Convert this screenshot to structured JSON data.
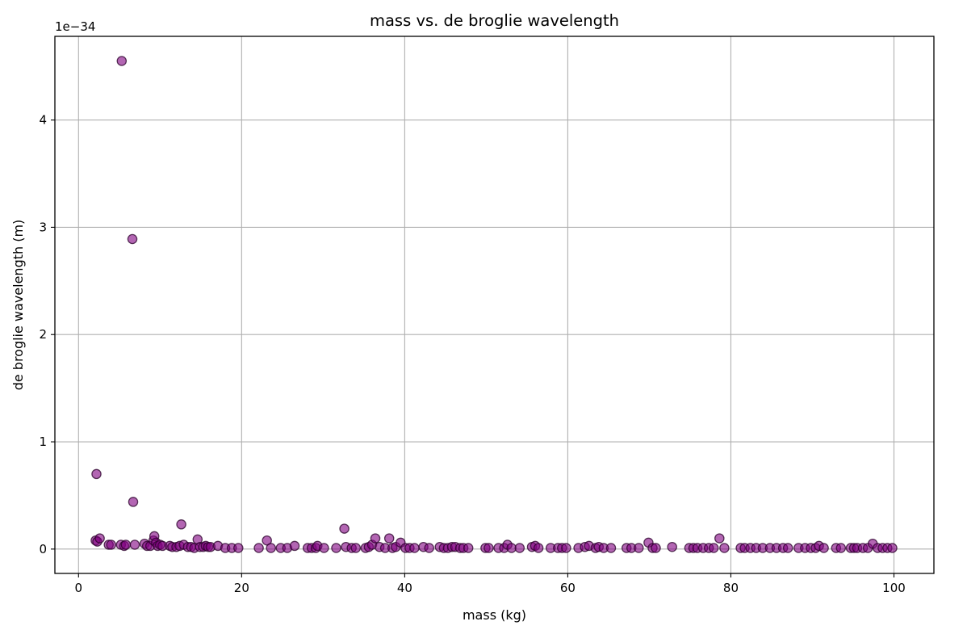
{
  "chart_data": {
    "type": "scatter",
    "title": "mass vs. de broglie wavelength",
    "xlabel": "mass (kg)",
    "ylabel": "de broglie wavelength (m)",
    "y_offset_label": "1e−34",
    "xlim": [
      -2.9,
      104.9
    ],
    "ylim": [
      -0.227,
      4.78
    ],
    "xticks": [
      0,
      20,
      40,
      60,
      80,
      100
    ],
    "xtick_labels": [
      "0",
      "20",
      "40",
      "60",
      "80",
      "100"
    ],
    "yticks": [
      0,
      1,
      2,
      3,
      4
    ],
    "ytick_labels": [
      "0",
      "1",
      "2",
      "3",
      "4"
    ],
    "y_units_note": "y values in units of 1e-34 m",
    "grid": true,
    "legend": "none",
    "marker_color": "#800080",
    "marker_edge_color": "#2a002a",
    "marker_alpha": 0.6,
    "points": [
      [
        5.3,
        4.55
      ],
      [
        6.6,
        2.89
      ],
      [
        2.2,
        0.7
      ],
      [
        6.7,
        0.44
      ],
      [
        12.6,
        0.23
      ],
      [
        32.6,
        0.19
      ],
      [
        2.1,
        0.08
      ],
      [
        2.3,
        0.07
      ],
      [
        2.6,
        0.1
      ],
      [
        3.7,
        0.04
      ],
      [
        4.0,
        0.04
      ],
      [
        5.2,
        0.04
      ],
      [
        5.6,
        0.03
      ],
      [
        5.8,
        0.04
      ],
      [
        6.9,
        0.04
      ],
      [
        8.1,
        0.05
      ],
      [
        8.4,
        0.03
      ],
      [
        8.8,
        0.03
      ],
      [
        9.2,
        0.08
      ],
      [
        9.3,
        0.12
      ],
      [
        9.5,
        0.06
      ],
      [
        9.7,
        0.03
      ],
      [
        10.0,
        0.04
      ],
      [
        10.3,
        0.03
      ],
      [
        11.2,
        0.03
      ],
      [
        11.5,
        0.02
      ],
      [
        12.0,
        0.02
      ],
      [
        12.4,
        0.03
      ],
      [
        12.9,
        0.04
      ],
      [
        13.4,
        0.02
      ],
      [
        13.8,
        0.02
      ],
      [
        14.2,
        0.01
      ],
      [
        14.6,
        0.09
      ],
      [
        14.9,
        0.02
      ],
      [
        15.3,
        0.02
      ],
      [
        15.6,
        0.03
      ],
      [
        15.9,
        0.02
      ],
      [
        16.2,
        0.02
      ],
      [
        17.1,
        0.03
      ],
      [
        18.0,
        0.01
      ],
      [
        18.8,
        0.01
      ],
      [
        19.6,
        0.01
      ],
      [
        22.1,
        0.01
      ],
      [
        23.1,
        0.08
      ],
      [
        23.6,
        0.01
      ],
      [
        24.8,
        0.01
      ],
      [
        25.6,
        0.01
      ],
      [
        26.5,
        0.03
      ],
      [
        28.1,
        0.01
      ],
      [
        28.6,
        0.01
      ],
      [
        29.1,
        0.01
      ],
      [
        29.3,
        0.03
      ],
      [
        30.1,
        0.01
      ],
      [
        31.6,
        0.01
      ],
      [
        32.8,
        0.02
      ],
      [
        33.5,
        0.01
      ],
      [
        34.0,
        0.01
      ],
      [
        35.2,
        0.01
      ],
      [
        35.6,
        0.02
      ],
      [
        36.0,
        0.04
      ],
      [
        36.4,
        0.1
      ],
      [
        36.9,
        0.02
      ],
      [
        37.6,
        0.01
      ],
      [
        38.1,
        0.1
      ],
      [
        38.5,
        0.01
      ],
      [
        38.9,
        0.02
      ],
      [
        39.5,
        0.06
      ],
      [
        40.1,
        0.01
      ],
      [
        40.6,
        0.01
      ],
      [
        41.2,
        0.01
      ],
      [
        42.3,
        0.02
      ],
      [
        43.0,
        0.01
      ],
      [
        44.3,
        0.02
      ],
      [
        44.8,
        0.01
      ],
      [
        45.3,
        0.01
      ],
      [
        45.8,
        0.02
      ],
      [
        46.2,
        0.02
      ],
      [
        46.8,
        0.01
      ],
      [
        47.2,
        0.01
      ],
      [
        47.8,
        0.01
      ],
      [
        49.9,
        0.01
      ],
      [
        50.3,
        0.01
      ],
      [
        51.5,
        0.01
      ],
      [
        52.2,
        0.01
      ],
      [
        52.6,
        0.04
      ],
      [
        53.1,
        0.01
      ],
      [
        54.1,
        0.01
      ],
      [
        55.6,
        0.02
      ],
      [
        56.0,
        0.03
      ],
      [
        56.4,
        0.01
      ],
      [
        57.9,
        0.01
      ],
      [
        58.8,
        0.01
      ],
      [
        59.3,
        0.01
      ],
      [
        59.8,
        0.01
      ],
      [
        61.3,
        0.01
      ],
      [
        62.1,
        0.02
      ],
      [
        62.6,
        0.03
      ],
      [
        63.4,
        0.01
      ],
      [
        63.8,
        0.02
      ],
      [
        64.4,
        0.01
      ],
      [
        65.3,
        0.01
      ],
      [
        67.2,
        0.01
      ],
      [
        67.8,
        0.01
      ],
      [
        68.7,
        0.01
      ],
      [
        69.9,
        0.06
      ],
      [
        70.4,
        0.01
      ],
      [
        70.8,
        0.01
      ],
      [
        72.8,
        0.02
      ],
      [
        74.9,
        0.01
      ],
      [
        75.4,
        0.01
      ],
      [
        75.9,
        0.01
      ],
      [
        76.6,
        0.01
      ],
      [
        77.3,
        0.01
      ],
      [
        77.9,
        0.01
      ],
      [
        78.6,
        0.1
      ],
      [
        79.2,
        0.01
      ],
      [
        81.2,
        0.01
      ],
      [
        81.7,
        0.01
      ],
      [
        82.4,
        0.01
      ],
      [
        83.1,
        0.01
      ],
      [
        83.9,
        0.01
      ],
      [
        84.8,
        0.01
      ],
      [
        85.6,
        0.01
      ],
      [
        86.4,
        0.01
      ],
      [
        87.0,
        0.01
      ],
      [
        88.3,
        0.01
      ],
      [
        89.1,
        0.01
      ],
      [
        89.8,
        0.01
      ],
      [
        90.4,
        0.01
      ],
      [
        90.8,
        0.03
      ],
      [
        91.4,
        0.01
      ],
      [
        92.9,
        0.01
      ],
      [
        93.5,
        0.01
      ],
      [
        94.7,
        0.01
      ],
      [
        95.1,
        0.01
      ],
      [
        95.5,
        0.01
      ],
      [
        96.2,
        0.01
      ],
      [
        96.8,
        0.01
      ],
      [
        97.4,
        0.05
      ],
      [
        98.0,
        0.01
      ],
      [
        98.6,
        0.01
      ],
      [
        99.2,
        0.01
      ],
      [
        99.8,
        0.01
      ]
    ]
  }
}
